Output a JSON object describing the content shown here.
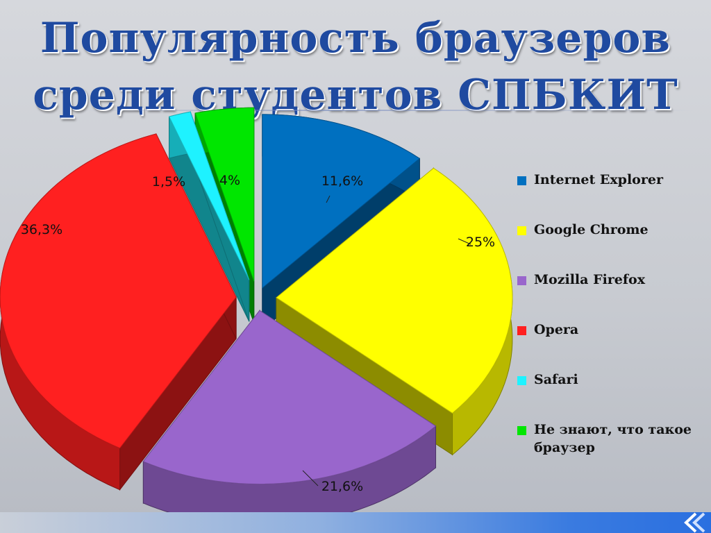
{
  "slide": {
    "title_line1": "Популярность браузеров",
    "title_line2": "среди студентов СПБКИТ"
  },
  "chart_data": {
    "type": "pie",
    "categories": [
      "Internet Explorer",
      "Google Chrome",
      "Mozilla Firefox",
      "Opera",
      "Safari",
      "Не знают, что такое браузер"
    ],
    "values": [
      11.6,
      25,
      21.6,
      36.3,
      1.5,
      4
    ],
    "labels": [
      "11,6%",
      "25%",
      "21,6%",
      "36,3%",
      "1,5%",
      "4%"
    ],
    "colors": [
      "#0070c0",
      "#ffff00",
      "#9966cc",
      "#ff2020",
      "#1ef2ff",
      "#00e600"
    ],
    "legend": {
      "position": "right",
      "entries": [
        "Internet Explorer",
        "Google Chrome",
        "Mozilla Firefox",
        "Opera",
        "Safari",
        "Не знают, что такое браузер"
      ]
    },
    "exploded": true,
    "three_d": true
  }
}
